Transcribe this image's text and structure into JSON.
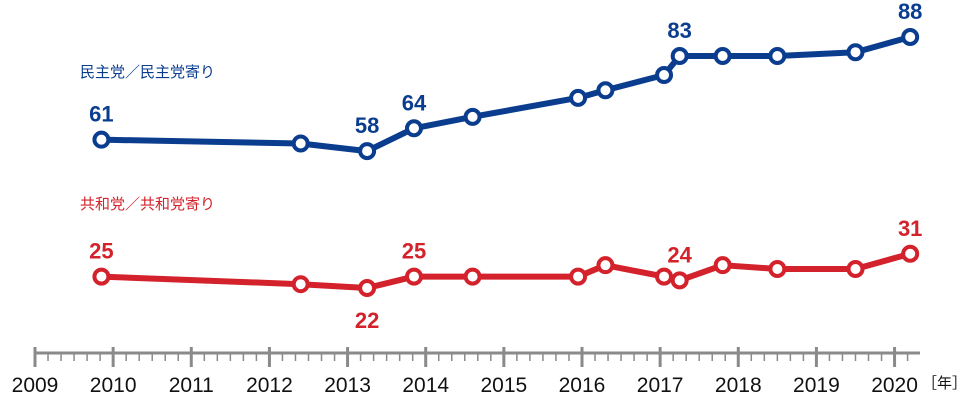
{
  "chart_data": {
    "type": "line",
    "x_unit_label": "［年］",
    "xlim": [
      2009,
      2020.3
    ],
    "ylim": [
      20,
      90
    ],
    "x_ticks": [
      2009,
      2010,
      2011,
      2012,
      2013,
      2014,
      2015,
      2016,
      2017,
      2018,
      2019,
      2020
    ],
    "x_tick_labels": [
      "2009",
      "2010",
      "2011",
      "2012",
      "2013",
      "2014",
      "2015",
      "2016",
      "2017",
      "2018",
      "2019",
      "2020"
    ],
    "colors": {
      "democrat": "#0b3d8f",
      "republican": "#d3222b",
      "axis": "#8a8a8a"
    },
    "series": [
      {
        "key": "democrat",
        "name": "民主党／民主党寄り",
        "x": [
          2009.85,
          2012.4,
          2013.25,
          2013.85,
          2014.6,
          2015.95,
          2016.3,
          2017.05,
          2017.25,
          2017.8,
          2018.5,
          2019.5,
          2020.2
        ],
        "values": [
          61,
          60,
          58,
          64,
          67,
          72,
          74,
          78,
          83,
          83,
          83,
          84,
          88
        ],
        "labels": [
          {
            "index": 0,
            "text": "61"
          },
          {
            "index": 2,
            "text": "58"
          },
          {
            "index": 3,
            "text": "64"
          },
          {
            "index": 8,
            "text": "83"
          },
          {
            "index": 12,
            "text": "88"
          }
        ]
      },
      {
        "key": "republican",
        "name": "共和党／共和党寄り",
        "x": [
          2009.85,
          2012.4,
          2013.25,
          2013.85,
          2014.6,
          2015.95,
          2016.3,
          2017.05,
          2017.25,
          2017.8,
          2018.5,
          2019.5,
          2020.2
        ],
        "values": [
          25,
          23,
          22,
          25,
          25,
          25,
          28,
          25,
          24,
          28,
          27,
          27,
          31
        ],
        "labels": [
          {
            "index": 0,
            "text": "25"
          },
          {
            "index": 2,
            "text": "22"
          },
          {
            "index": 3,
            "text": "25"
          },
          {
            "index": 8,
            "text": "24"
          },
          {
            "index": 12,
            "text": "31"
          }
        ]
      }
    ]
  }
}
